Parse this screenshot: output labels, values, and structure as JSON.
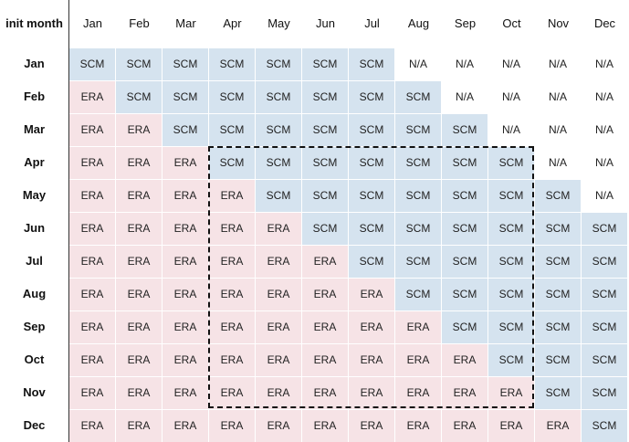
{
  "header": {
    "corner_label": "init month",
    "months": [
      "Jan",
      "Feb",
      "Mar",
      "Apr",
      "May",
      "Jun",
      "Jul",
      "Aug",
      "Sep",
      "Oct",
      "Nov",
      "Dec"
    ]
  },
  "rows": [
    {
      "label": "Jan",
      "cells": [
        "SCM",
        "SCM",
        "SCM",
        "SCM",
        "SCM",
        "SCM",
        "SCM",
        "N/A",
        "N/A",
        "N/A",
        "N/A",
        "N/A"
      ]
    },
    {
      "label": "Feb",
      "cells": [
        "ERA",
        "SCM",
        "SCM",
        "SCM",
        "SCM",
        "SCM",
        "SCM",
        "SCM",
        "N/A",
        "N/A",
        "N/A",
        "N/A"
      ]
    },
    {
      "label": "Mar",
      "cells": [
        "ERA",
        "ERA",
        "SCM",
        "SCM",
        "SCM",
        "SCM",
        "SCM",
        "SCM",
        "SCM",
        "N/A",
        "N/A",
        "N/A"
      ]
    },
    {
      "label": "Apr",
      "cells": [
        "ERA",
        "ERA",
        "ERA",
        "SCM",
        "SCM",
        "SCM",
        "SCM",
        "SCM",
        "SCM",
        "SCM",
        "N/A",
        "N/A"
      ]
    },
    {
      "label": "May",
      "cells": [
        "ERA",
        "ERA",
        "ERA",
        "ERA",
        "SCM",
        "SCM",
        "SCM",
        "SCM",
        "SCM",
        "SCM",
        "SCM",
        "N/A"
      ]
    },
    {
      "label": "Jun",
      "cells": [
        "ERA",
        "ERA",
        "ERA",
        "ERA",
        "ERA",
        "SCM",
        "SCM",
        "SCM",
        "SCM",
        "SCM",
        "SCM",
        "SCM"
      ]
    },
    {
      "label": "Jul",
      "cells": [
        "ERA",
        "ERA",
        "ERA",
        "ERA",
        "ERA",
        "ERA",
        "SCM",
        "SCM",
        "SCM",
        "SCM",
        "SCM",
        "SCM"
      ]
    },
    {
      "label": "Aug",
      "cells": [
        "ERA",
        "ERA",
        "ERA",
        "ERA",
        "ERA",
        "ERA",
        "ERA",
        "SCM",
        "SCM",
        "SCM",
        "SCM",
        "SCM"
      ]
    },
    {
      "label": "Sep",
      "cells": [
        "ERA",
        "ERA",
        "ERA",
        "ERA",
        "ERA",
        "ERA",
        "ERA",
        "ERA",
        "SCM",
        "SCM",
        "SCM",
        "SCM"
      ]
    },
    {
      "label": "Oct",
      "cells": [
        "ERA",
        "ERA",
        "ERA",
        "ERA",
        "ERA",
        "ERA",
        "ERA",
        "ERA",
        "ERA",
        "SCM",
        "SCM",
        "SCM"
      ]
    },
    {
      "label": "Nov",
      "cells": [
        "ERA",
        "ERA",
        "ERA",
        "ERA",
        "ERA",
        "ERA",
        "ERA",
        "ERA",
        "ERA",
        "ERA",
        "SCM",
        "SCM"
      ]
    },
    {
      "label": "Dec",
      "cells": [
        "ERA",
        "ERA",
        "ERA",
        "ERA",
        "ERA",
        "ERA",
        "ERA",
        "ERA",
        "ERA",
        "ERA",
        "ERA",
        "SCM"
      ]
    }
  ],
  "colors": {
    "SCM": "#d5e3ef",
    "ERA": "#f6e3e6",
    "N/A": "#ffffff",
    "divider": "#333333",
    "highlight_border": "#111111"
  }
}
